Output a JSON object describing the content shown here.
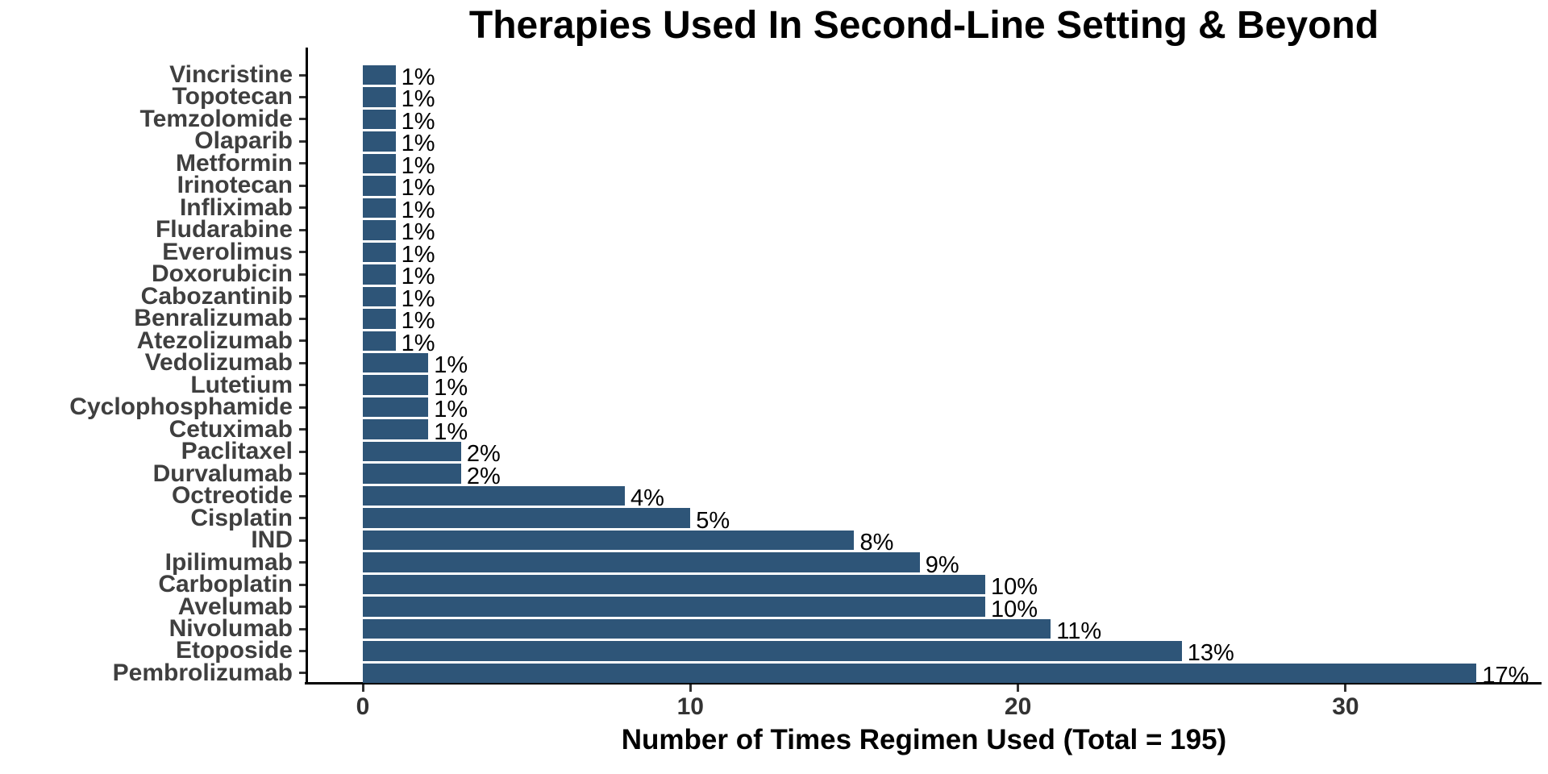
{
  "chart_data": {
    "type": "bar",
    "orientation": "horizontal",
    "title": "Therapies Used In Second-Line Setting & Beyond",
    "xlabel": "Number of Times Regimen Used (Total = 195)",
    "ylabel": "",
    "total": 195,
    "xticks": [
      0,
      10,
      20,
      30
    ],
    "xlim": [
      0,
      35.9
    ],
    "grid": false,
    "legend": false,
    "bar_color": "#2e5578",
    "axis_line_color": "#000000",
    "tick_label_color": "#333333",
    "category_label_color": "#3f3f3f",
    "categories": [
      "Vincristine",
      "Topotecan",
      "Temzolomide",
      "Olaparib",
      "Metformin",
      "Irinotecan",
      "Infliximab",
      "Fludarabine",
      "Everolimus",
      "Doxorubicin",
      "Cabozantinib",
      "Benralizumab",
      "Atezolizumab",
      "Vedolizumab",
      "Lutetium",
      "Cyclophosphamide",
      "Cetuximab",
      "Paclitaxel",
      "Durvalumab",
      "Octreotide",
      "Cisplatin",
      "IND",
      "Ipilimumab",
      "Carboplatin",
      "Avelumab",
      "Nivolumab",
      "Etoposide",
      "Pembrolizumab"
    ],
    "values": [
      1,
      1,
      1,
      1,
      1,
      1,
      1,
      1,
      1,
      1,
      1,
      1,
      1,
      2,
      2,
      2,
      2,
      3,
      3,
      8,
      10,
      15,
      17,
      19,
      19,
      21,
      25,
      34
    ],
    "bar_labels": [
      "1%",
      "1%",
      "1%",
      "1%",
      "1%",
      "1%",
      "1%",
      "1%",
      "1%",
      "1%",
      "1%",
      "1%",
      "1%",
      "1%",
      "1%",
      "1%",
      "1%",
      "2%",
      "2%",
      "4%",
      "5%",
      "8%",
      "9%",
      "10%",
      "10%",
      "11%",
      "13%",
      "17%"
    ]
  }
}
